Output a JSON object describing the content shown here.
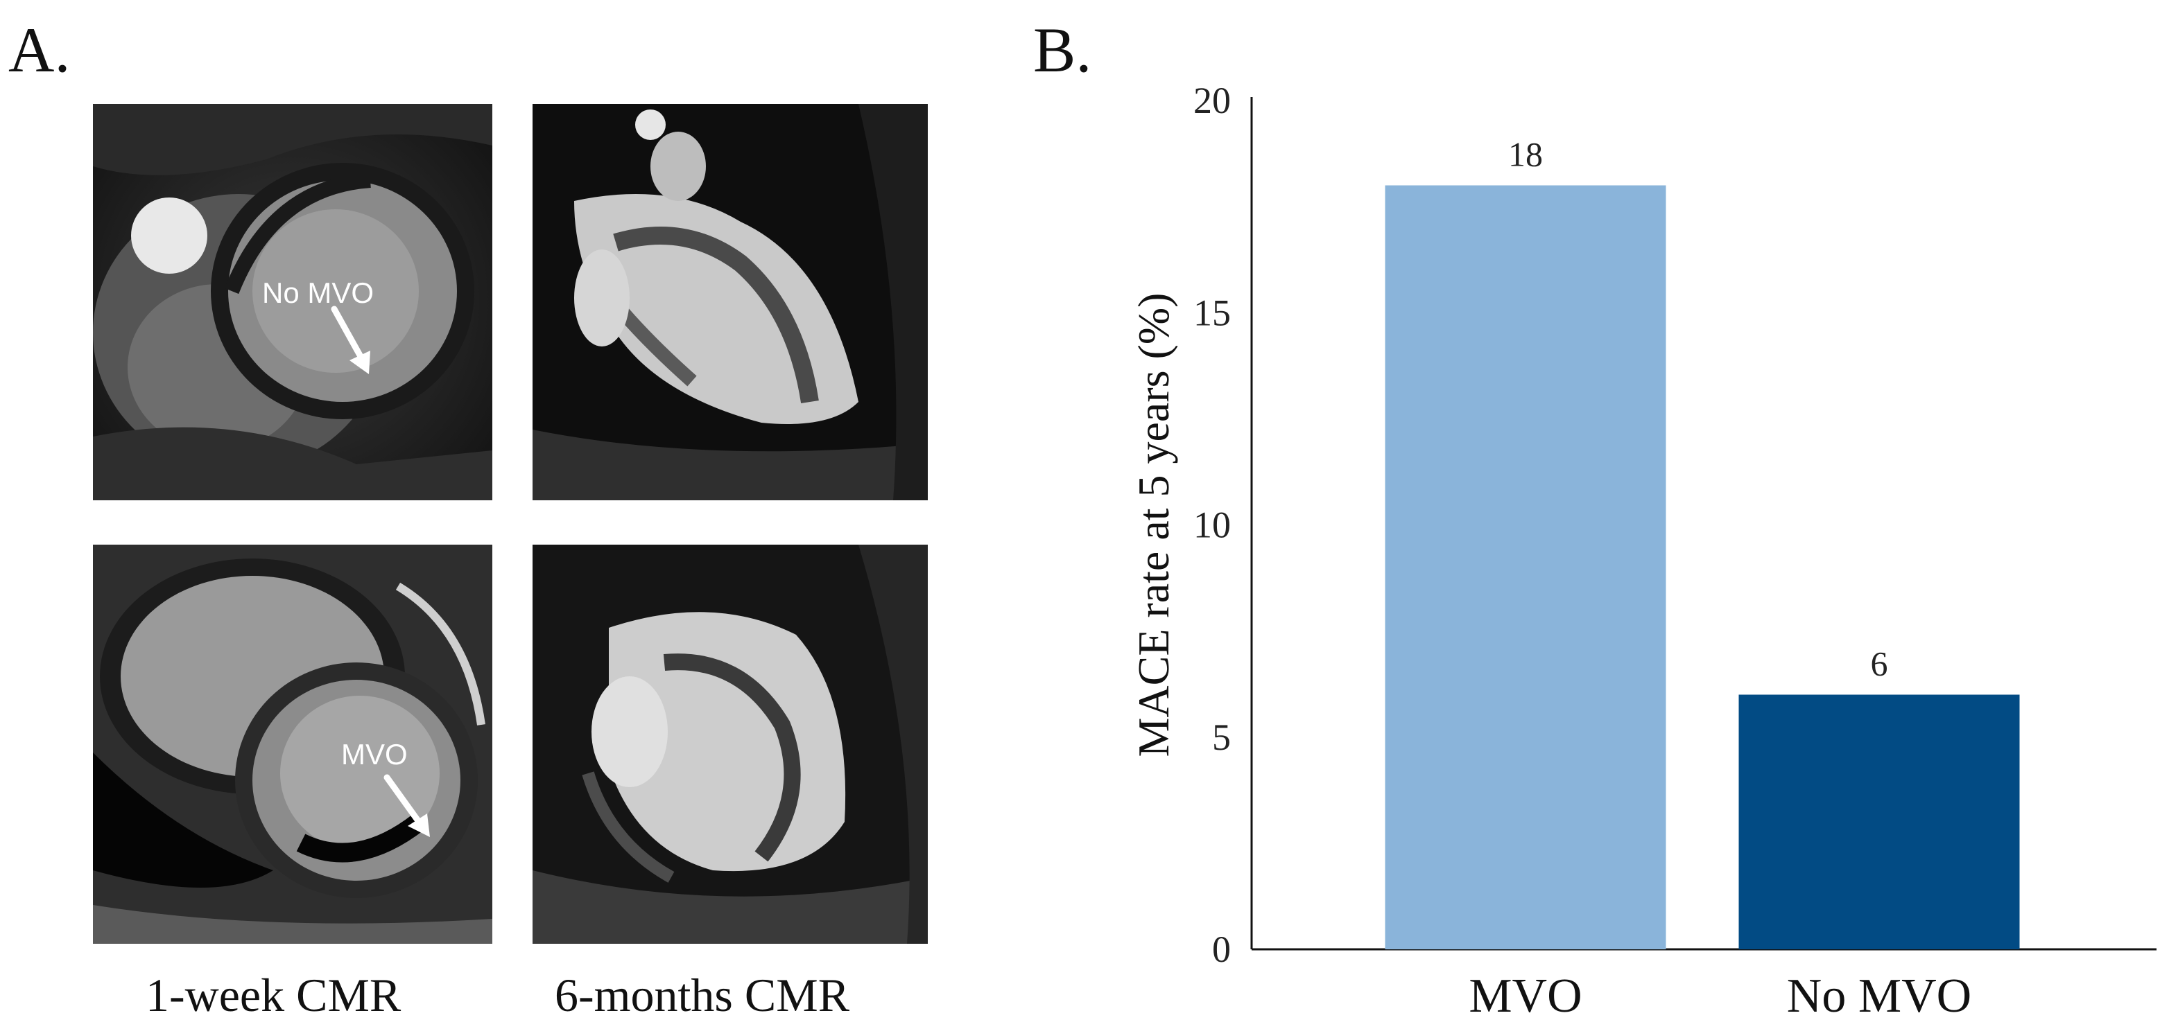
{
  "panels": {
    "a_letter": "A.",
    "b_letter": "B."
  },
  "images": {
    "label_no_mvo": "No MVO",
    "label_mvo": "MVO",
    "caption_1week": "1-week CMR",
    "caption_6months": "6-months CMR"
  },
  "chart_data": {
    "type": "bar",
    "categories": [
      "MVO",
      "No MVO"
    ],
    "values": [
      18,
      6
    ],
    "data_labels": [
      "18",
      "6"
    ],
    "colors": [
      "#8ab4da",
      "#024b84"
    ],
    "title": "",
    "xlabel": "",
    "ylabel": "MACE rate at 5 years (%)",
    "ylim": [
      0,
      20
    ],
    "yticks": [
      0,
      5,
      10,
      15,
      20
    ],
    "ytick_labels": [
      "0",
      "5",
      "10",
      "15",
      "20"
    ],
    "grid": false,
    "legend": "none"
  }
}
